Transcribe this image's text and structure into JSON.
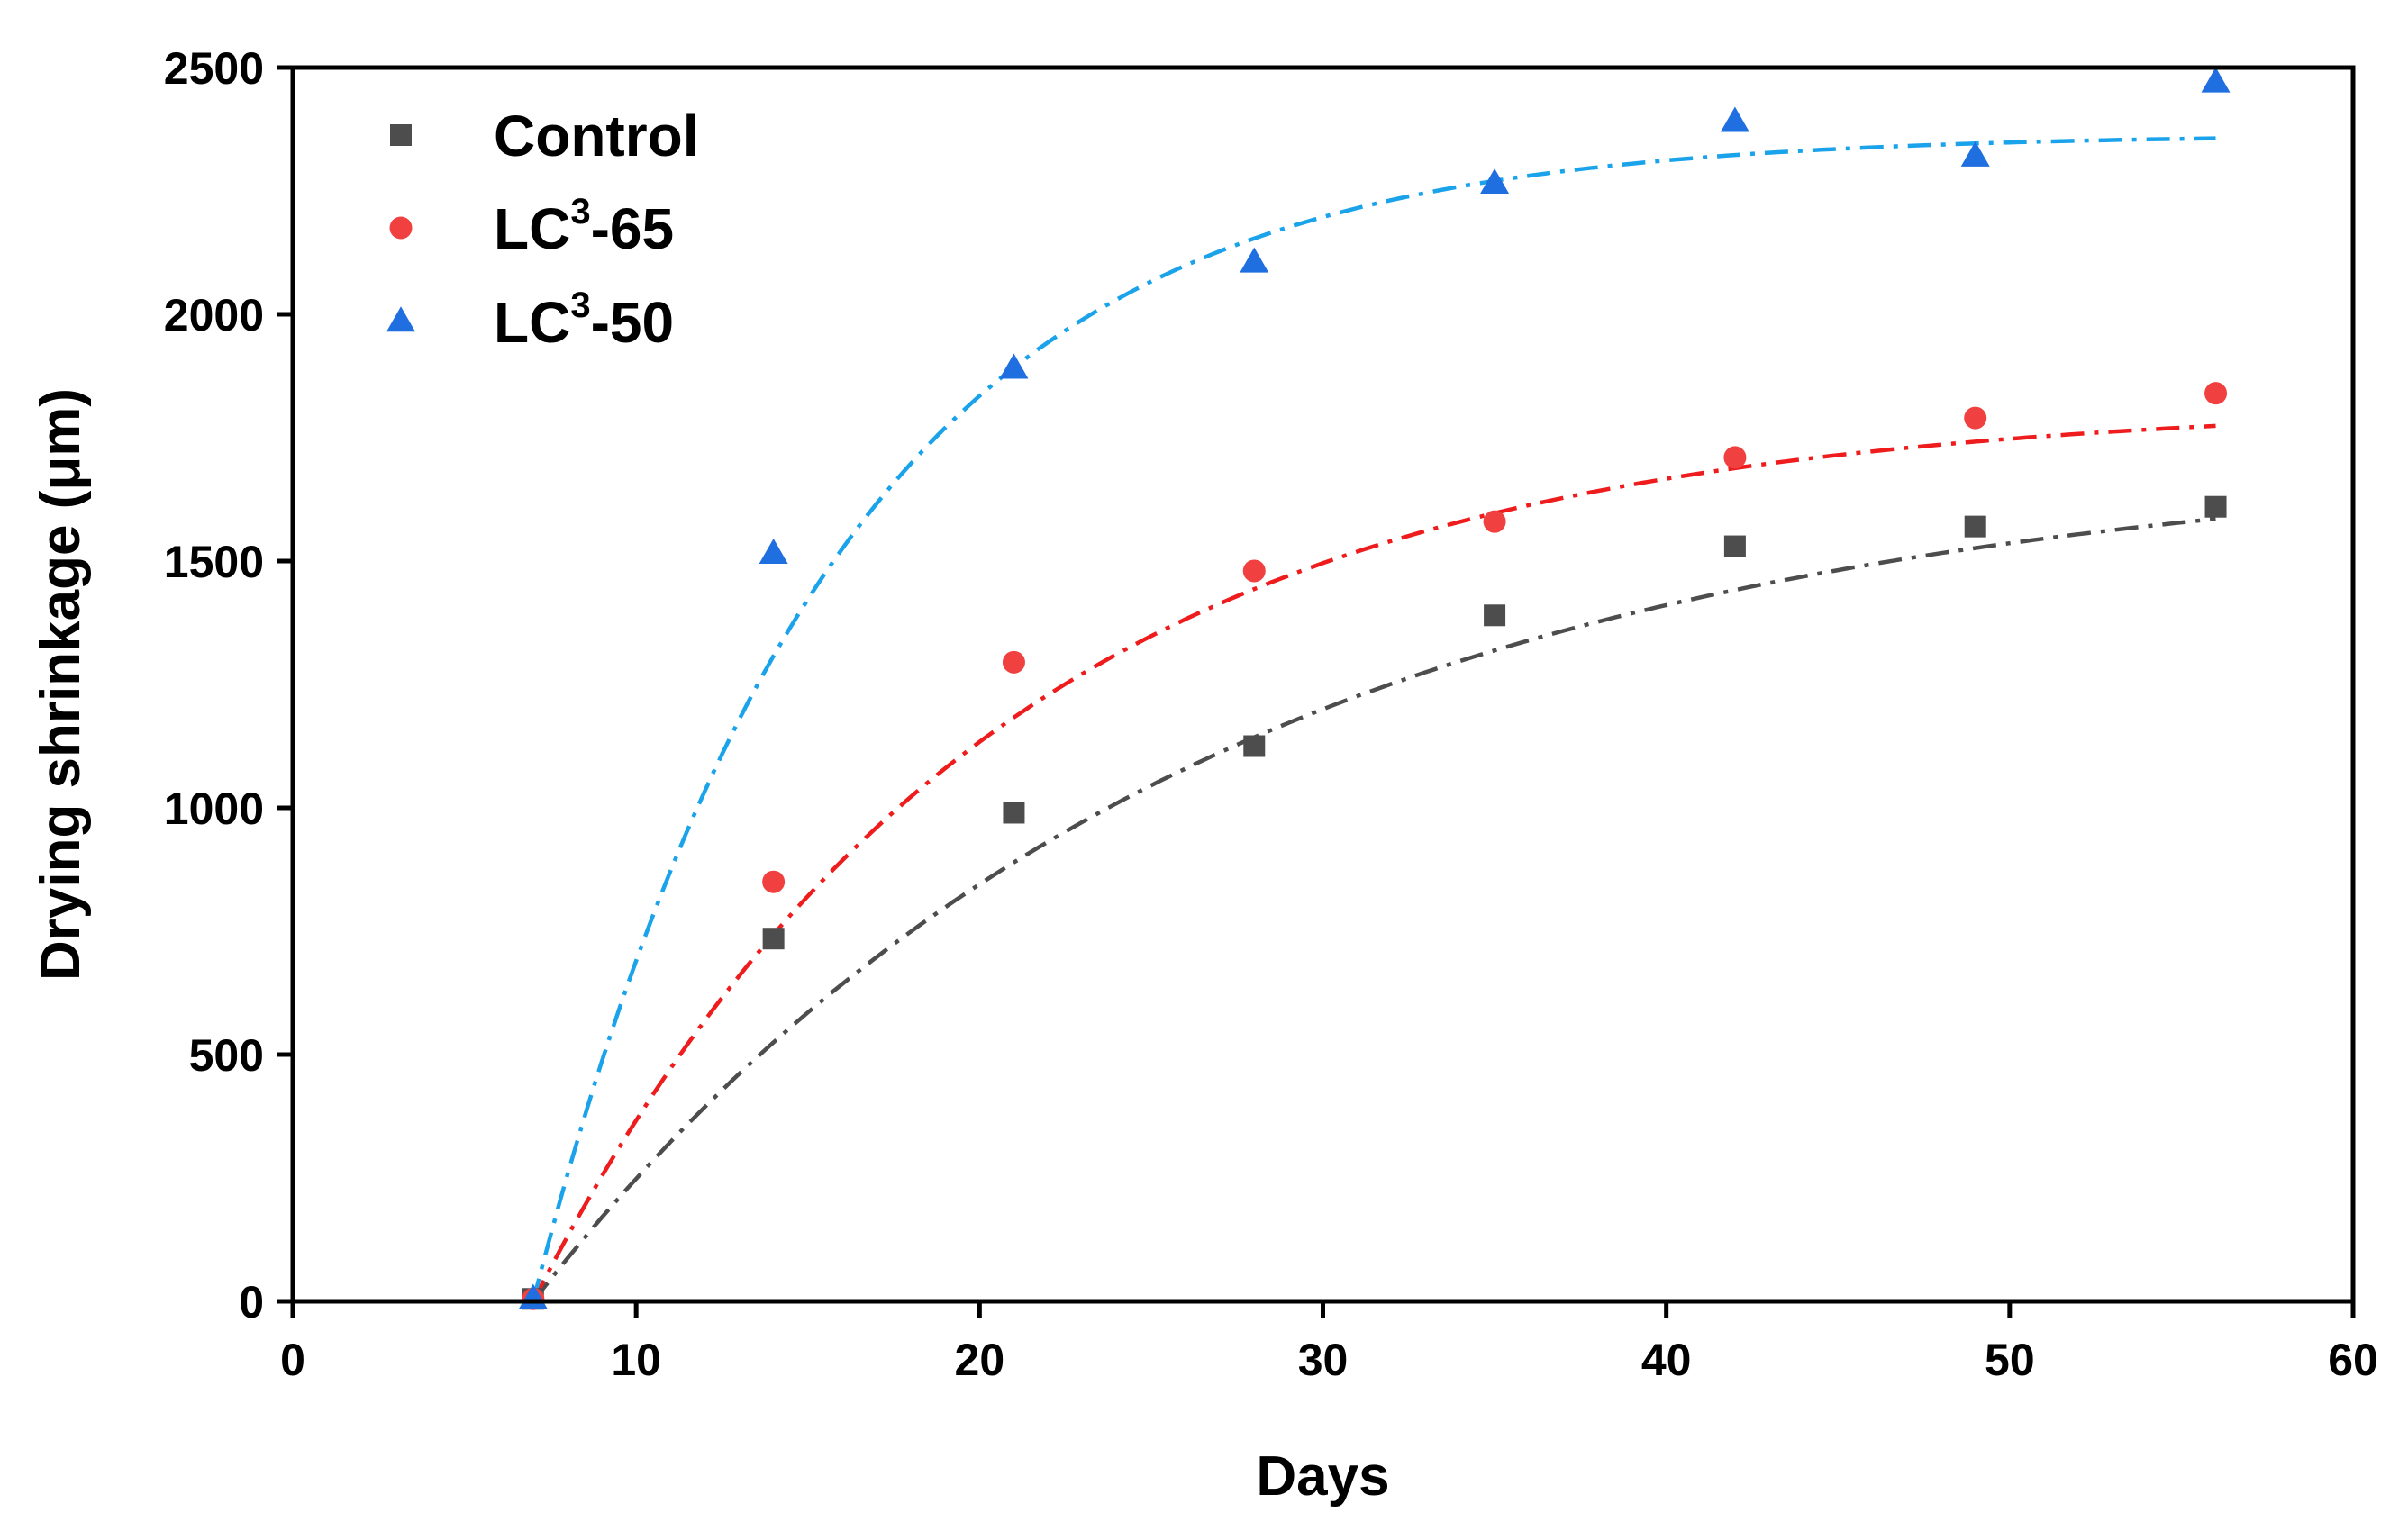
{
  "chart_data": {
    "type": "scatter",
    "title": "",
    "xlabel": "Days",
    "ylabel": "Drying shrinkage (μm)",
    "xlim": [
      0,
      60
    ],
    "ylim": [
      0,
      2500
    ],
    "xticks": [
      0,
      10,
      20,
      30,
      40,
      50,
      60
    ],
    "yticks": [
      0,
      500,
      1000,
      1500,
      2000,
      2500
    ],
    "grid": false,
    "legend_position": "top-left",
    "series": [
      {
        "name": "Control",
        "legend_base": "Control",
        "legend_sup": "",
        "legend_suffix": "",
        "marker": "square",
        "color": "#4d4d4d",
        "fit_color": "#4d4d4d",
        "fit_style": "dash-dot",
        "fit": {
          "x0": 7,
          "ymax": 1720,
          "k": 0.052
        },
        "x": [
          7,
          14,
          21,
          28,
          35,
          42,
          49,
          56
        ],
        "y": [
          5,
          735,
          990,
          1125,
          1390,
          1530,
          1570,
          1610
        ]
      },
      {
        "name": "LC3-65",
        "legend_base": "LC",
        "legend_sup": "3",
        "legend_suffix": "-65",
        "marker": "circle",
        "color": "#f04040",
        "fit_color": "#ee1c1c",
        "fit_style": "dash-dot",
        "fit": {
          "x0": 7,
          "ymax": 1820,
          "k": 0.075
        },
        "x": [
          7,
          14,
          21,
          28,
          35,
          42,
          49,
          56
        ],
        "y": [
          5,
          850,
          1295,
          1480,
          1580,
          1710,
          1790,
          1840
        ]
      },
      {
        "name": "LC3-50",
        "legend_base": "LC",
        "legend_sup": "3",
        "legend_suffix": "-50",
        "marker": "triangle",
        "color": "#1f6fe0",
        "fit_color": "#1aa3ea",
        "fit_style": "dash-dot",
        "fit": {
          "x0": 7,
          "ymax": 2365,
          "k": 0.115
        },
        "x": [
          7,
          14,
          21,
          28,
          35,
          42,
          49,
          56
        ],
        "y": [
          5,
          1515,
          1890,
          2105,
          2265,
          2390,
          2320,
          2470
        ]
      }
    ]
  }
}
